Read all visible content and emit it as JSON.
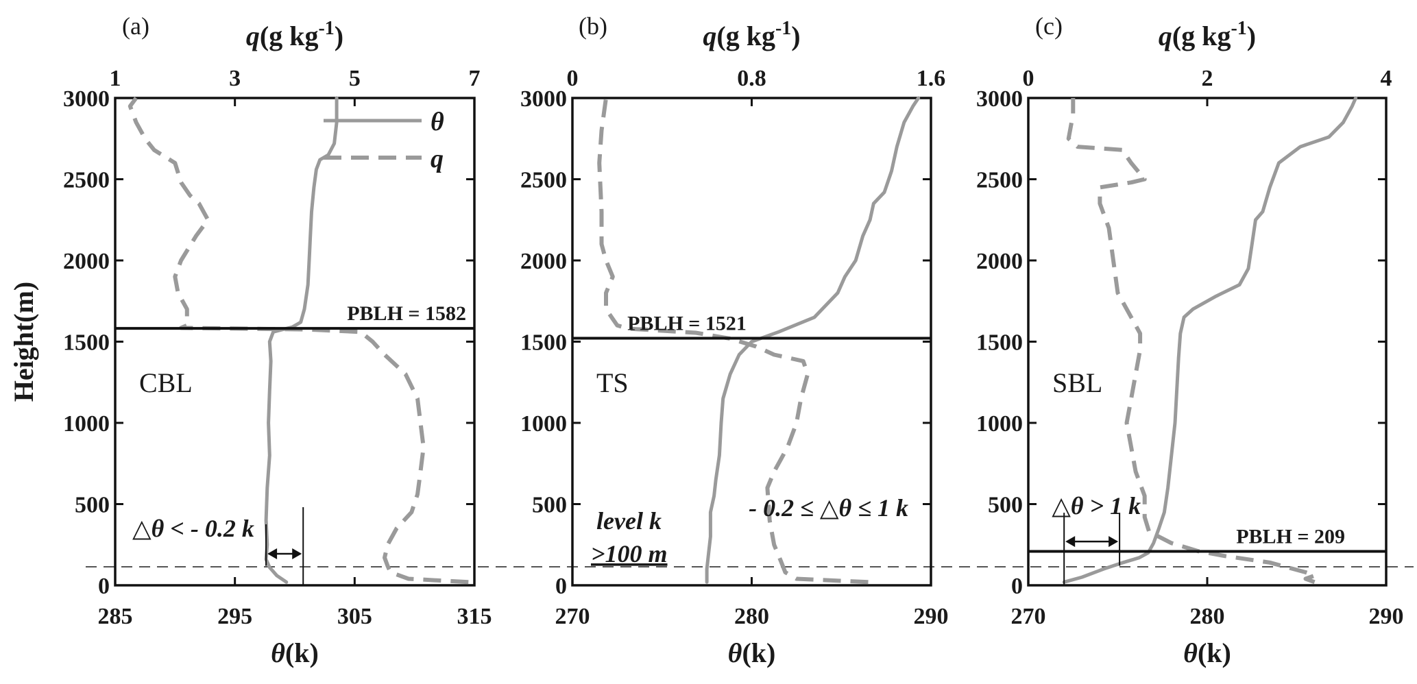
{
  "colors": {
    "profile": "#9a9a9a",
    "frame": "#111111",
    "ref_line": "#555555"
  },
  "chart_data": [
    {
      "type": "line",
      "panel": "(a)",
      "regime": "CBL",
      "top_axis": {
        "label_var": "q",
        "label_rest": "(g kg",
        "label_exp": "-1",
        "label_close": ")",
        "range": [
          1,
          7
        ],
        "ticks": [
          "1",
          "3",
          "5",
          "7"
        ]
      },
      "bottom_axis": {
        "label_var": "θ",
        "label_rest": "(k)",
        "range": [
          285,
          315
        ],
        "ticks": [
          "285",
          "295",
          "305",
          "315"
        ]
      },
      "y_axis": {
        "label": "Height(m)",
        "range": [
          0,
          3000
        ],
        "ticks": [
          "0",
          "500",
          "1000",
          "1500",
          "2000",
          "2500",
          "3000"
        ]
      },
      "pblh": {
        "value": 1582,
        "label": "PBLH = 1582"
      },
      "annotation": {
        "text": "△θ < - 0.2 k",
        "theta_from": 297.6,
        "theta_to": 300.7,
        "height": 270,
        "level": 120
      },
      "legend": {
        "placement": "top-right",
        "entries": [
          {
            "name": "θ",
            "style": "solid"
          },
          {
            "name": "q",
            "style": "dashed"
          }
        ]
      },
      "series": [
        {
          "var": "θ",
          "axis": "bottom",
          "style": "solid",
          "points": [
            [
              299.3,
              20
            ],
            [
              298.5,
              60
            ],
            [
              297.9,
              110
            ],
            [
              297.6,
              160
            ],
            [
              297.7,
              250
            ],
            [
              297.6,
              400
            ],
            [
              297.7,
              600
            ],
            [
              297.9,
              800
            ],
            [
              297.8,
              1000
            ],
            [
              297.9,
              1200
            ],
            [
              298.0,
              1380
            ],
            [
              297.9,
              1500
            ],
            [
              298.2,
              1560
            ],
            [
              299.0,
              1575
            ],
            [
              299.8,
              1590
            ],
            [
              300.5,
              1620
            ],
            [
              300.8,
              1700
            ],
            [
              301.1,
              1850
            ],
            [
              301.2,
              2000
            ],
            [
              301.3,
              2150
            ],
            [
              301.4,
              2300
            ],
            [
              301.6,
              2450
            ],
            [
              301.8,
              2560
            ],
            [
              302.1,
              2620
            ],
            [
              302.8,
              2650
            ],
            [
              303.3,
              2720
            ],
            [
              303.5,
              2850
            ],
            [
              303.5,
              3000
            ]
          ]
        },
        {
          "var": "q",
          "axis": "top",
          "style": "dashed",
          "points": [
            [
              6.9,
              20
            ],
            [
              5.9,
              40
            ],
            [
              5.6,
              80
            ],
            [
              5.55,
              120
            ],
            [
              5.5,
              170
            ],
            [
              5.55,
              250
            ],
            [
              5.7,
              350
            ],
            [
              5.95,
              450
            ],
            [
              6.05,
              560
            ],
            [
              6.1,
              700
            ],
            [
              6.15,
              850
            ],
            [
              6.1,
              1000
            ],
            [
              6.05,
              1150
            ],
            [
              5.85,
              1300
            ],
            [
              5.5,
              1420
            ],
            [
              5.3,
              1500
            ],
            [
              5.1,
              1560
            ],
            [
              4.2,
              1575
            ],
            [
              2.1,
              1585
            ],
            [
              2.2,
              1600
            ],
            [
              2.2,
              1700
            ],
            [
              2.05,
              1800
            ],
            [
              2.0,
              1900
            ],
            [
              2.1,
              2000
            ],
            [
              2.35,
              2150
            ],
            [
              2.55,
              2250
            ],
            [
              2.4,
              2350
            ],
            [
              2.25,
              2400
            ],
            [
              2.1,
              2480
            ],
            [
              2.0,
              2600
            ],
            [
              1.65,
              2680
            ],
            [
              1.5,
              2750
            ],
            [
              1.35,
              2850
            ],
            [
              1.25,
              2950
            ],
            [
              1.35,
              3000
            ]
          ]
        }
      ]
    },
    {
      "type": "line",
      "panel": "(b)",
      "regime": "TS",
      "top_axis": {
        "label_var": "q",
        "label_rest": "(g kg",
        "label_exp": "-1",
        "label_close": ")",
        "range": [
          0,
          1.6
        ],
        "ticks": [
          "0",
          "0.8",
          "1.6"
        ]
      },
      "bottom_axis": {
        "label_var": "θ",
        "label_rest": "(k)",
        "range": [
          270,
          290
        ],
        "ticks": [
          "270",
          "280",
          "290"
        ]
      },
      "y_axis": {
        "label": "",
        "range": [
          0,
          3000
        ],
        "ticks": [
          "0",
          "500",
          "1000",
          "1500",
          "2000",
          "2500",
          "3000"
        ]
      },
      "pblh": {
        "value": 1521,
        "label": "PBLH = 1521"
      },
      "annotations": [
        {
          "text": "- 0.2 ≤ △θ ≤ 1 k"
        },
        {
          "lines": [
            "level k",
            ">100 m"
          ]
        }
      ],
      "series": [
        {
          "var": "θ",
          "axis": "bottom",
          "style": "solid",
          "points": [
            [
              277.5,
              20
            ],
            [
              277.5,
              100
            ],
            [
              277.6,
              200
            ],
            [
              277.7,
              300
            ],
            [
              277.7,
              450
            ],
            [
              277.9,
              550
            ],
            [
              278.0,
              650
            ],
            [
              278.2,
              800
            ],
            [
              278.3,
              1000
            ],
            [
              278.4,
              1150
            ],
            [
              278.8,
              1300
            ],
            [
              279.3,
              1420
            ],
            [
              280.0,
              1500
            ],
            [
              281.5,
              1560
            ],
            [
              283.5,
              1650
            ],
            [
              284.8,
              1800
            ],
            [
              285.2,
              1900
            ],
            [
              285.8,
              2000
            ],
            [
              286.2,
              2150
            ],
            [
              286.6,
              2250
            ],
            [
              286.8,
              2350
            ],
            [
              287.4,
              2420
            ],
            [
              287.8,
              2550
            ],
            [
              288.1,
              2700
            ],
            [
              288.5,
              2850
            ],
            [
              289.0,
              2950
            ],
            [
              289.3,
              3000
            ]
          ]
        },
        {
          "var": "q",
          "axis": "top",
          "style": "dashed",
          "points": [
            [
              1.32,
              20
            ],
            [
              1.0,
              40
            ],
            [
              0.95,
              80
            ],
            [
              0.93,
              150
            ],
            [
              0.9,
              250
            ],
            [
              0.88,
              400
            ],
            [
              0.87,
              600
            ],
            [
              0.9,
              700
            ],
            [
              0.96,
              850
            ],
            [
              1.0,
              1000
            ],
            [
              1.02,
              1150
            ],
            [
              1.05,
              1300
            ],
            [
              1.03,
              1380
            ],
            [
              0.9,
              1420
            ],
            [
              0.82,
              1470
            ],
            [
              0.7,
              1520
            ],
            [
              0.55,
              1555
            ],
            [
              0.25,
              1580
            ],
            [
              0.2,
              1600
            ],
            [
              0.15,
              1700
            ],
            [
              0.15,
              1800
            ],
            [
              0.18,
              1900
            ],
            [
              0.15,
              2000
            ],
            [
              0.13,
              2100
            ],
            [
              0.13,
              2300
            ],
            [
              0.12,
              2600
            ],
            [
              0.13,
              2800
            ],
            [
              0.15,
              3000
            ]
          ]
        }
      ]
    },
    {
      "type": "line",
      "panel": "(c)",
      "regime": "SBL",
      "top_axis": {
        "label_var": "q",
        "label_rest": "(g kg",
        "label_exp": "-1",
        "label_close": ")",
        "range": [
          0,
          4
        ],
        "ticks": [
          "0",
          "2",
          "4"
        ]
      },
      "bottom_axis": {
        "label_var": "θ",
        "label_rest": "(k)",
        "range": [
          270,
          290
        ],
        "ticks": [
          "270",
          "280",
          "290"
        ]
      },
      "y_axis": {
        "label": "",
        "range": [
          0,
          3000
        ],
        "ticks": [
          "0",
          "500",
          "1000",
          "1500",
          "2000",
          "2500",
          "3000"
        ]
      },
      "pblh": {
        "value": 209,
        "label": "PBLH = 209"
      },
      "annotation": {
        "text": "△θ > 1 k",
        "theta_from": 272.0,
        "theta_to": 275.1,
        "height": 320,
        "level": 120
      },
      "series": [
        {
          "var": "θ",
          "axis": "bottom",
          "style": "solid",
          "points": [
            [
              272.0,
              20
            ],
            [
              273.0,
              50
            ],
            [
              274.2,
              100
            ],
            [
              275.3,
              140
            ],
            [
              276.2,
              170
            ],
            [
              276.7,
              200
            ],
            [
              277.0,
              260
            ],
            [
              277.3,
              350
            ],
            [
              277.6,
              450
            ],
            [
              277.8,
              600
            ],
            [
              278.0,
              800
            ],
            [
              278.2,
              1000
            ],
            [
              278.3,
              1200
            ],
            [
              278.4,
              1400
            ],
            [
              278.5,
              1550
            ],
            [
              278.7,
              1650
            ],
            [
              279.2,
              1700
            ],
            [
              280.5,
              1780
            ],
            [
              281.8,
              1850
            ],
            [
              282.3,
              1950
            ],
            [
              282.5,
              2100
            ],
            [
              282.7,
              2250
            ],
            [
              283.1,
              2300
            ],
            [
              283.5,
              2450
            ],
            [
              284.0,
              2600
            ],
            [
              285.2,
              2700
            ],
            [
              286.8,
              2760
            ],
            [
              287.6,
              2850
            ],
            [
              288.1,
              2950
            ],
            [
              288.3,
              3000
            ]
          ]
        },
        {
          "var": "q",
          "axis": "top",
          "style": "dashed",
          "points": [
            [
              3.2,
              20
            ],
            [
              3.1,
              40
            ],
            [
              3.2,
              60
            ],
            [
              3.1,
              80
            ],
            [
              2.7,
              140
            ],
            [
              2.2,
              180
            ],
            [
              1.9,
              210
            ],
            [
              1.6,
              260
            ],
            [
              1.35,
              330
            ],
            [
              1.3,
              420
            ],
            [
              1.3,
              550
            ],
            [
              1.2,
              700
            ],
            [
              1.15,
              850
            ],
            [
              1.1,
              1000
            ],
            [
              1.15,
              1150
            ],
            [
              1.2,
              1300
            ],
            [
              1.25,
              1450
            ],
            [
              1.25,
              1550
            ],
            [
              1.15,
              1650
            ],
            [
              1.0,
              1800
            ],
            [
              0.95,
              2000
            ],
            [
              0.9,
              2200
            ],
            [
              0.8,
              2350
            ],
            [
              0.8,
              2450
            ],
            [
              1.15,
              2480
            ],
            [
              1.3,
              2500
            ],
            [
              1.15,
              2600
            ],
            [
              1.05,
              2680
            ],
            [
              0.55,
              2700
            ],
            [
              0.45,
              2750
            ],
            [
              0.5,
              2900
            ],
            [
              0.5,
              3000
            ]
          ]
        }
      ]
    }
  ]
}
